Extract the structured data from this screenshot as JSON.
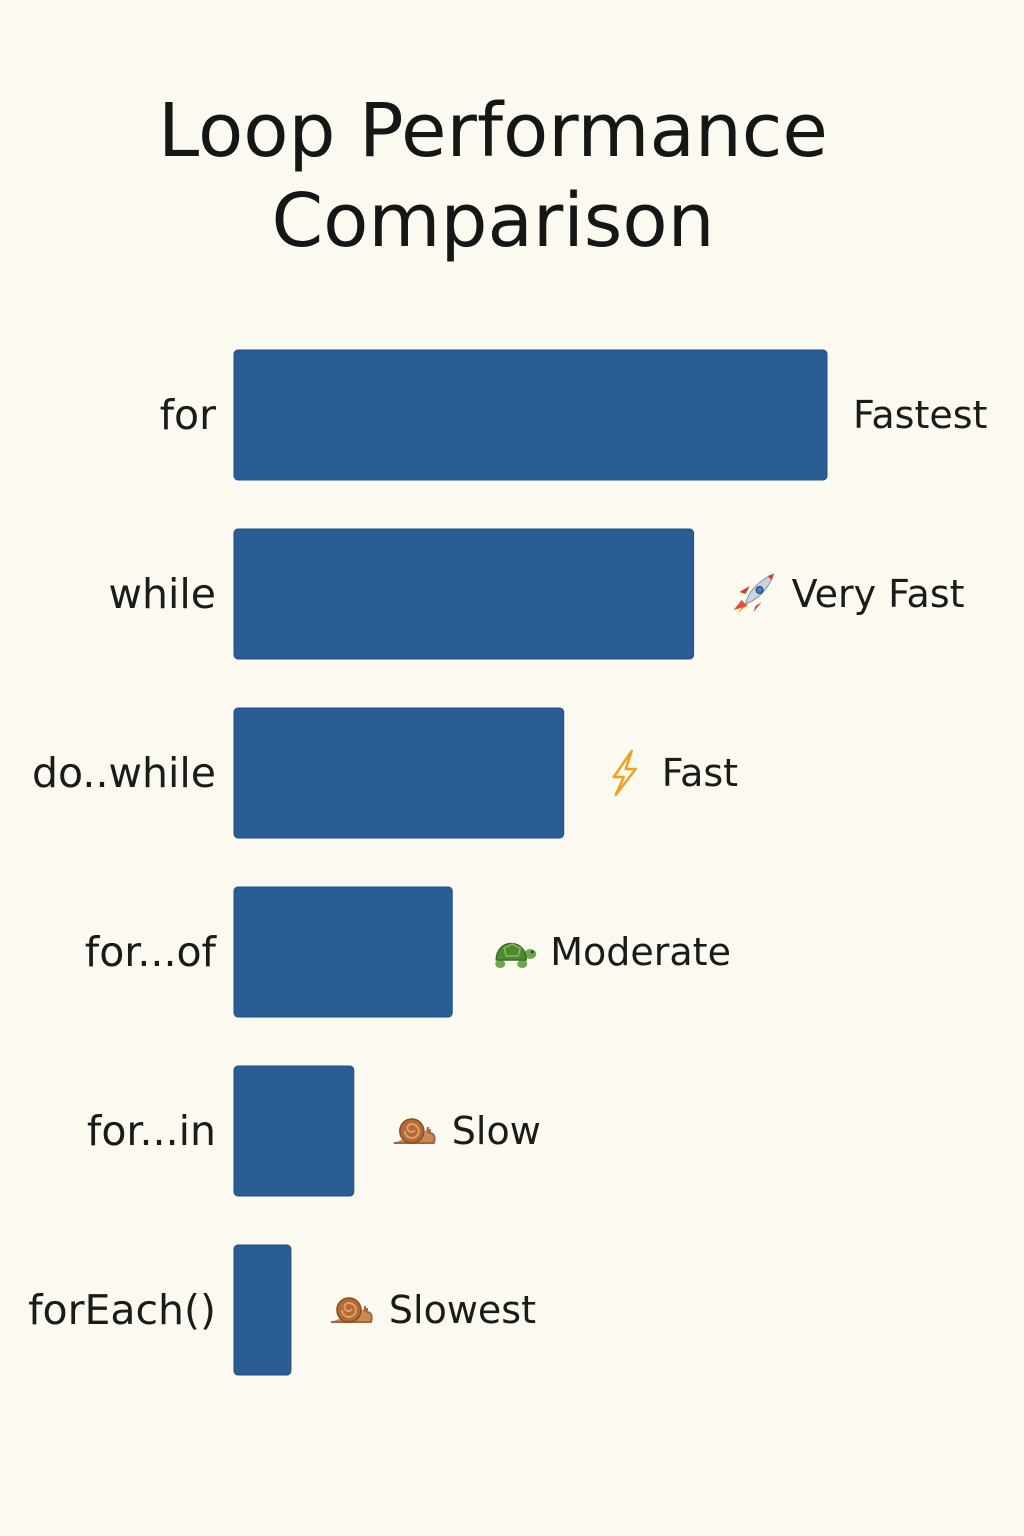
{
  "chart_data": {
    "type": "bar",
    "orientation": "horizontal",
    "title_lines": [
      "Loop Performance",
      "Comparison"
    ],
    "categories": [
      "for",
      "while",
      "do..while",
      "for...of",
      "for...in",
      "forEach()"
    ],
    "values": [
      100,
      77.5,
      55.6,
      36.8,
      20.2,
      9.6
    ],
    "xlim": [
      0,
      100
    ],
    "value_labels": [
      "Fastest",
      "Very Fast",
      "Fast",
      "Moderate",
      "Slow",
      "Slowest"
    ],
    "value_label_icons": [
      "",
      "rocket-icon",
      "lightning-icon",
      "turtle-icon",
      "snail-icon",
      "snail-icon"
    ],
    "bar_color": "#2a5d94",
    "grid": false,
    "legend": "none"
  }
}
